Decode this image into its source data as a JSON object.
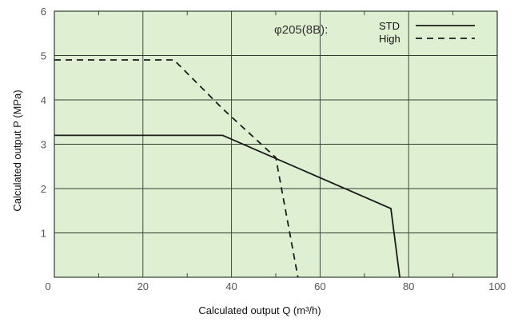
{
  "chart_data": {
    "type": "line",
    "xlabel": "Calculated output Q (m³/h)",
    "ylabel": "Calculated output P (MPa)",
    "xlim": [
      0,
      100
    ],
    "ylim": [
      0,
      6
    ],
    "x_ticks": [
      0,
      20,
      40,
      60,
      80,
      100
    ],
    "y_ticks": [
      0,
      1,
      2,
      3,
      4,
      5,
      6
    ],
    "grid": true,
    "legend_title": "φ205(8B):",
    "legend_position": "top-right",
    "series": [
      {
        "name": "STD",
        "style": "solid",
        "points": [
          [
            0,
            3.2
          ],
          [
            38,
            3.2
          ],
          [
            76,
            1.55
          ],
          [
            78,
            0
          ]
        ]
      },
      {
        "name": "High",
        "style": "dashed",
        "points": [
          [
            0,
            4.9
          ],
          [
            27,
            4.9
          ],
          [
            38,
            3.8
          ],
          [
            50,
            2.7
          ],
          [
            55,
            0
          ]
        ]
      }
    ]
  },
  "colors": {
    "plot_background": "#dff0d2",
    "grid": "#2f3b2f",
    "line": "#1a1a1a",
    "tick_label": "#555555"
  }
}
